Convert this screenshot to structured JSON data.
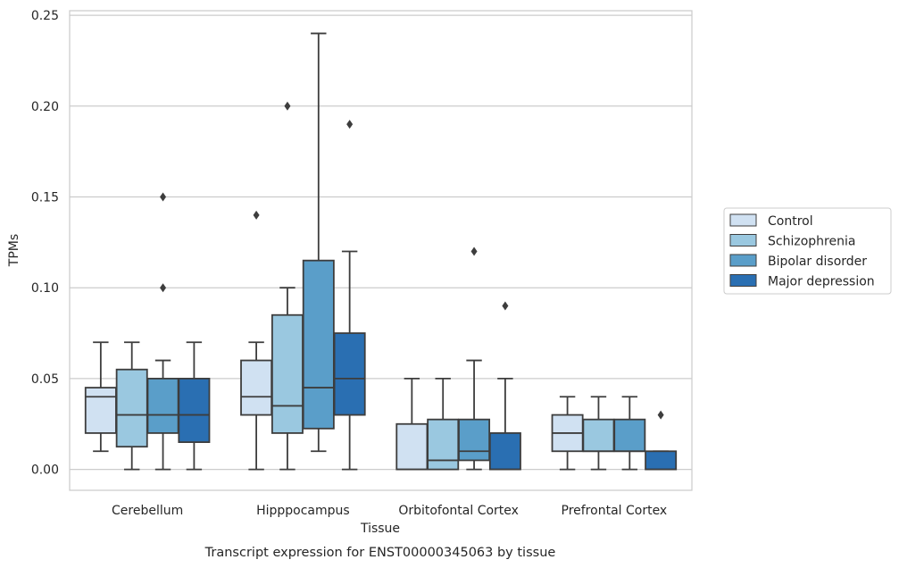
{
  "chart_data": {
    "type": "box",
    "title": "",
    "caption": "Transcript expression for ENST00000345063 by tissue",
    "xlabel": "Tissue",
    "ylabel": "TPMs",
    "ylim": [
      -0.0115,
      0.2525
    ],
    "yticks": [
      0.0,
      0.05,
      0.1,
      0.15,
      0.2,
      0.25
    ],
    "ytick_labels": [
      "0.00",
      "0.05",
      "0.10",
      "0.15",
      "0.20",
      "0.25"
    ],
    "grid": "horizontal",
    "legend_position": "right",
    "categories": [
      "Cerebellum",
      "Hipppocampus",
      "Orbitofontal Cortex",
      "Prefrontal Cortex"
    ],
    "series": [
      {
        "name": "Control",
        "color": "#d0e1f2",
        "boxes": [
          {
            "whislo": 0.01,
            "q1": 0.02,
            "med": 0.04,
            "q3": 0.045,
            "whishi": 0.07,
            "fliers": []
          },
          {
            "whislo": 0.0,
            "q1": 0.03,
            "med": 0.04,
            "q3": 0.06,
            "whishi": 0.07,
            "fliers": [
              0.14
            ]
          },
          {
            "whislo": 0.0,
            "q1": 0.0,
            "med": 0.0,
            "q3": 0.025,
            "whishi": 0.05,
            "fliers": []
          },
          {
            "whislo": 0.0,
            "q1": 0.01,
            "med": 0.02,
            "q3": 0.03,
            "whishi": 0.04,
            "fliers": []
          }
        ]
      },
      {
        "name": "Schizophrenia",
        "color": "#9ac8e0",
        "boxes": [
          {
            "whislo": 0.0,
            "q1": 0.0125,
            "med": 0.03,
            "q3": 0.055,
            "whishi": 0.07,
            "fliers": []
          },
          {
            "whislo": 0.0,
            "q1": 0.02,
            "med": 0.035,
            "q3": 0.085,
            "whishi": 0.1,
            "fliers": [
              0.2
            ]
          },
          {
            "whislo": 0.0,
            "q1": 0.0,
            "med": 0.005,
            "q3": 0.0275,
            "whishi": 0.05,
            "fliers": []
          },
          {
            "whislo": 0.0,
            "q1": 0.01,
            "med": 0.01,
            "q3": 0.0275,
            "whishi": 0.04,
            "fliers": []
          }
        ]
      },
      {
        "name": "Bipolar disorder",
        "color": "#5a9ec9",
        "boxes": [
          {
            "whislo": 0.0,
            "q1": 0.02,
            "med": 0.03,
            "q3": 0.05,
            "whishi": 0.06,
            "fliers": [
              0.15,
              0.1
            ]
          },
          {
            "whislo": 0.01,
            "q1": 0.0225,
            "med": 0.045,
            "q3": 0.115,
            "whishi": 0.24,
            "fliers": []
          },
          {
            "whislo": 0.0,
            "q1": 0.005,
            "med": 0.01,
            "q3": 0.0275,
            "whishi": 0.06,
            "fliers": [
              0.12
            ]
          },
          {
            "whislo": 0.0,
            "q1": 0.01,
            "med": 0.01,
            "q3": 0.0275,
            "whishi": 0.04,
            "fliers": []
          }
        ]
      },
      {
        "name": "Major depression",
        "color": "#2a6fb2",
        "boxes": [
          {
            "whislo": 0.0,
            "q1": 0.015,
            "med": 0.03,
            "q3": 0.05,
            "whishi": 0.07,
            "fliers": []
          },
          {
            "whislo": 0.0,
            "q1": 0.03,
            "med": 0.05,
            "q3": 0.075,
            "whishi": 0.12,
            "fliers": [
              0.19
            ]
          },
          {
            "whislo": 0.0,
            "q1": 0.0,
            "med": 0.0,
            "q3": 0.02,
            "whishi": 0.05,
            "fliers": [
              0.09
            ]
          },
          {
            "whislo": 0.0,
            "q1": 0.0,
            "med": 0.0,
            "q3": 0.01,
            "whishi": 0.01,
            "fliers": [
              0.03
            ]
          }
        ]
      }
    ]
  }
}
